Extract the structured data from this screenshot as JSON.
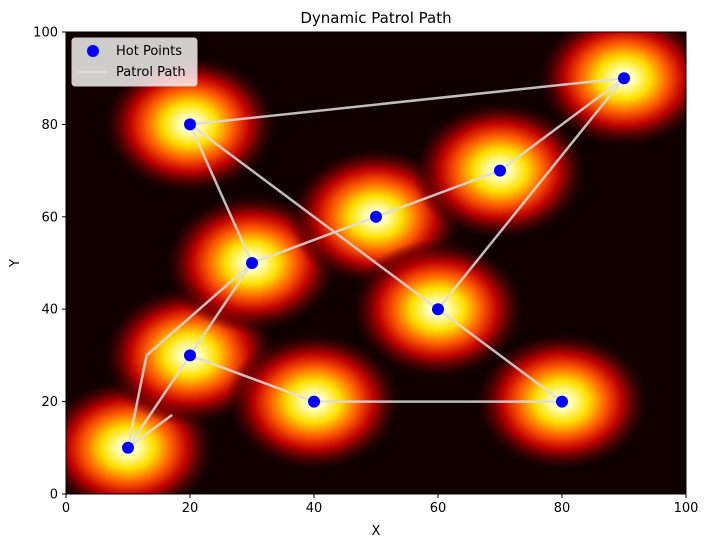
{
  "chart_data": {
    "type": "scatter",
    "title": "Dynamic Patrol Path",
    "xlabel": "X",
    "ylabel": "Y",
    "xlim": [
      0,
      100
    ],
    "ylim": [
      0,
      100
    ],
    "xticks": [
      0,
      20,
      40,
      60,
      80,
      100
    ],
    "yticks": [
      0,
      20,
      40,
      60,
      80,
      100
    ],
    "background": "heatmap",
    "legend_position": "upper-left",
    "series": [
      {
        "name": "Hot Points",
        "kind": "scatter",
        "color": "#0000ff",
        "points": [
          [
            10,
            10
          ],
          [
            20,
            30
          ],
          [
            40,
            20
          ],
          [
            30,
            50
          ],
          [
            50,
            60
          ],
          [
            20,
            80
          ],
          [
            70,
            70
          ],
          [
            90,
            90
          ],
          [
            60,
            40
          ],
          [
            80,
            20
          ]
        ]
      },
      {
        "name": "Patrol Path",
        "kind": "line",
        "color": "#dddddd",
        "points": [
          [
            17,
            17
          ],
          [
            10,
            10
          ],
          [
            20,
            30
          ],
          [
            40,
            20
          ],
          [
            80,
            20
          ],
          [
            20,
            80
          ],
          [
            90,
            90
          ],
          [
            60,
            40
          ],
          [
            20,
            80
          ],
          [
            30,
            50
          ],
          [
            50,
            60
          ],
          [
            70,
            70
          ],
          [
            90,
            90
          ],
          [
            60,
            40
          ],
          [
            20,
            80
          ],
          [
            30,
            50
          ],
          [
            20,
            30
          ],
          [
            10,
            10
          ],
          [
            13,
            30
          ],
          [
            30,
            50
          ]
        ]
      }
    ]
  }
}
